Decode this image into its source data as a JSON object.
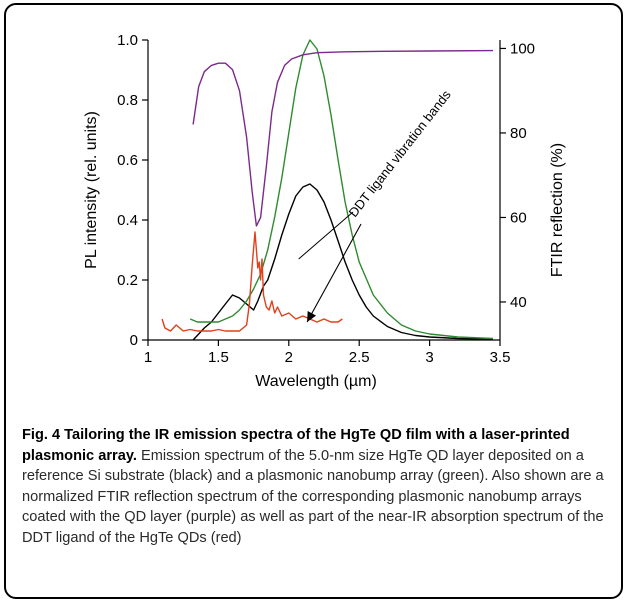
{
  "chart_data": {
    "type": "line",
    "x_axis": {
      "label": "Wavelength (µm)",
      "range": [
        1,
        3.5
      ],
      "ticks": [
        "1",
        "1.5",
        "2",
        "2.5",
        "3",
        "3.5"
      ]
    },
    "y_left": {
      "label": "PL intensity (rel. units)",
      "range": [
        0,
        1.0
      ],
      "ticks": [
        "0",
        "0.2",
        "0.4",
        "0.6",
        "0.8",
        "1.0"
      ]
    },
    "y_right": {
      "label": "FTIR reflection (%)",
      "range": [
        31,
        102
      ],
      "ticks": [
        "40",
        "60",
        "80",
        "100"
      ]
    },
    "grid": false,
    "legend": "none",
    "annotation": {
      "text": "DDT ligand vibration bands",
      "arrow_target": [
        2.07,
        0.27
      ],
      "arrow_target_2": [
        2.13,
        0.06
      ]
    },
    "series": [
      {
        "id": "black",
        "axis": "left",
        "color": "#000000",
        "x": [
          1.32,
          1.4,
          1.45,
          1.5,
          1.55,
          1.6,
          1.65,
          1.7,
          1.75,
          1.78,
          1.82,
          1.85,
          1.9,
          1.95,
          2.0,
          2.05,
          2.1,
          2.15,
          2.2,
          2.25,
          2.3,
          2.35,
          2.4,
          2.45,
          2.5,
          2.55,
          2.6,
          2.7,
          2.8,
          2.9,
          3.0,
          3.2,
          3.45
        ],
        "y": [
          0.0,
          0.04,
          0.06,
          0.09,
          0.12,
          0.15,
          0.14,
          0.12,
          0.1,
          0.13,
          0.18,
          0.2,
          0.27,
          0.35,
          0.42,
          0.48,
          0.51,
          0.52,
          0.5,
          0.46,
          0.4,
          0.33,
          0.26,
          0.2,
          0.15,
          0.11,
          0.08,
          0.045,
          0.025,
          0.015,
          0.01,
          0.005,
          0.003
        ]
      },
      {
        "id": "green",
        "axis": "left",
        "color": "#2f8a2f",
        "x": [
          1.3,
          1.35,
          1.4,
          1.45,
          1.5,
          1.55,
          1.6,
          1.65,
          1.7,
          1.75,
          1.8,
          1.85,
          1.9,
          1.95,
          2.0,
          2.05,
          2.1,
          2.15,
          2.2,
          2.25,
          2.3,
          2.35,
          2.4,
          2.45,
          2.5,
          2.6,
          2.7,
          2.8,
          2.9,
          3.0,
          3.2,
          3.45
        ],
        "y": [
          0.07,
          0.06,
          0.06,
          0.06,
          0.06,
          0.07,
          0.08,
          0.1,
          0.13,
          0.17,
          0.22,
          0.3,
          0.41,
          0.54,
          0.69,
          0.84,
          0.95,
          1.0,
          0.97,
          0.88,
          0.75,
          0.6,
          0.46,
          0.35,
          0.26,
          0.15,
          0.09,
          0.05,
          0.03,
          0.02,
          0.01,
          0.005
        ]
      },
      {
        "id": "purple",
        "axis": "right",
        "color": "#7a2a8a",
        "x": [
          1.32,
          1.36,
          1.4,
          1.45,
          1.5,
          1.55,
          1.6,
          1.65,
          1.7,
          1.74,
          1.77,
          1.8,
          1.84,
          1.88,
          1.92,
          1.97,
          2.02,
          2.1,
          2.2,
          2.4,
          2.6,
          3.0,
          3.45
        ],
        "y": [
          82,
          91,
          94.5,
          96,
          96.5,
          96.5,
          95,
          90,
          79,
          66,
          58,
          60,
          72,
          85,
          92,
          96,
          97.5,
          98.5,
          99,
          99.2,
          99.3,
          99.4,
          99.5
        ]
      },
      {
        "id": "red",
        "axis": "left",
        "color": "#e0401a",
        "x": [
          1.1,
          1.12,
          1.16,
          1.2,
          1.25,
          1.3,
          1.35,
          1.4,
          1.45,
          1.5,
          1.55,
          1.6,
          1.65,
          1.7,
          1.72,
          1.74,
          1.76,
          1.77,
          1.78,
          1.79,
          1.8,
          1.81,
          1.82,
          1.84,
          1.86,
          1.88,
          1.9,
          1.92,
          1.95,
          2.0,
          2.05,
          2.1,
          2.15,
          2.2,
          2.25,
          2.3,
          2.35,
          2.38
        ],
        "y": [
          0.07,
          0.04,
          0.03,
          0.05,
          0.03,
          0.035,
          0.03,
          0.03,
          0.03,
          0.035,
          0.03,
          0.03,
          0.03,
          0.05,
          0.12,
          0.25,
          0.36,
          0.3,
          0.24,
          0.26,
          0.2,
          0.27,
          0.15,
          0.11,
          0.1,
          0.13,
          0.09,
          0.11,
          0.08,
          0.09,
          0.07,
          0.08,
          0.07,
          0.06,
          0.07,
          0.06,
          0.06,
          0.07
        ]
      }
    ]
  },
  "caption": {
    "lead": "Fig. 4 Tailoring the IR emission spectra of the HgTe QD film with a laser-printed plasmonic array.",
    "body": " Emission spectrum of the 5.0-nm size HgTe QD layer deposited on a reference Si substrate (black) and a plasmonic nanobump array (green). Also shown are a normalized FTIR reflection spectrum of the corresponding plasmonic nanobump arrays coated with the QD layer (purple) as well as part of the near-IR absorption spectrum of the DDT ligand of the HgTe QDs (red)"
  }
}
